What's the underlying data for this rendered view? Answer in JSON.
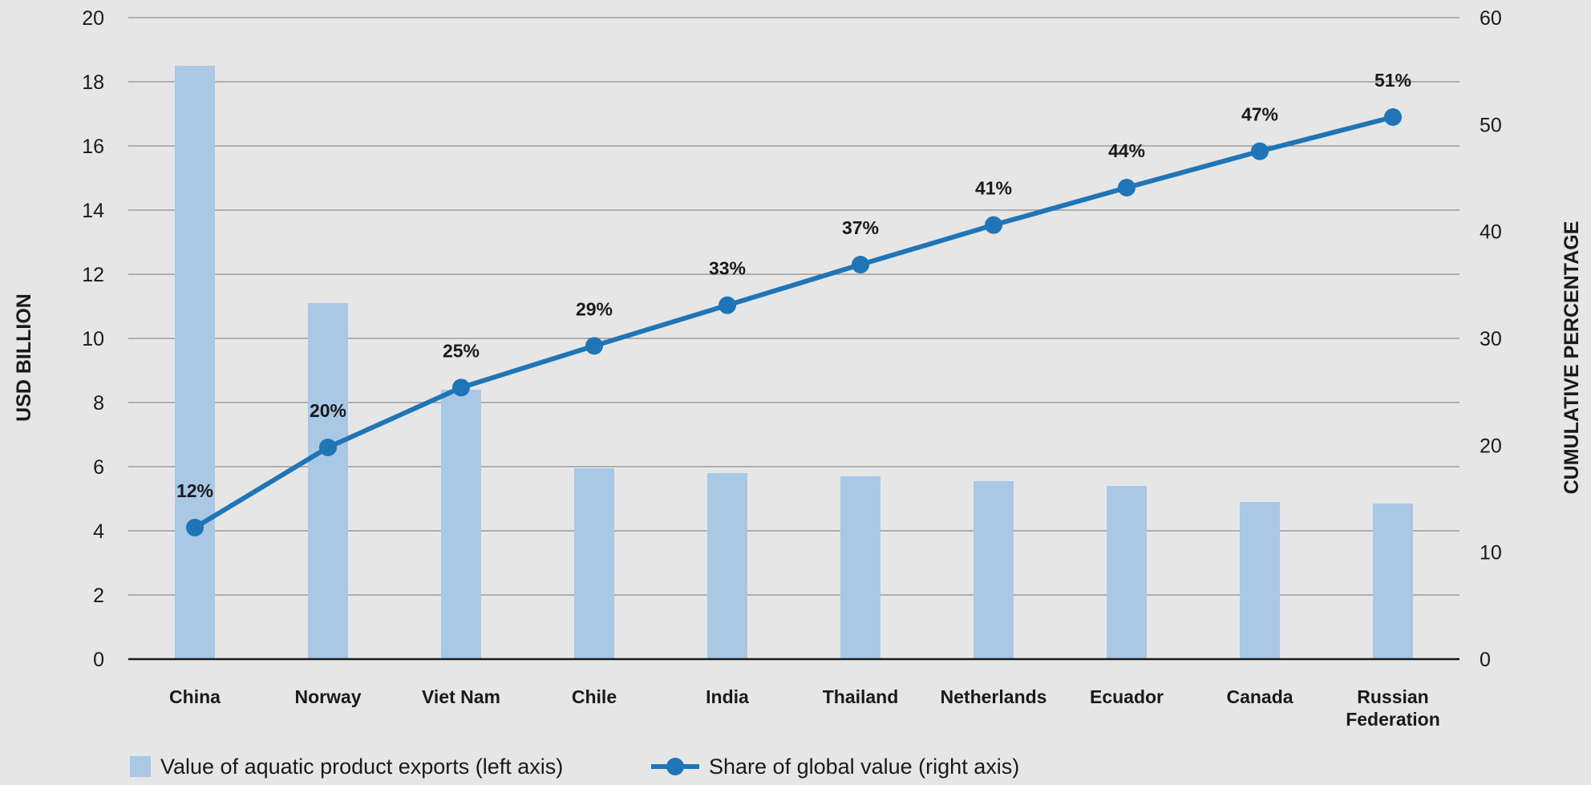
{
  "chart_data": {
    "type": "bar",
    "categories": [
      "China",
      "Norway",
      "Viet Nam",
      "Chile",
      "India",
      "Thailand",
      "Netherlands",
      "Ecuador",
      "Canada",
      "Russian\nFederation"
    ],
    "series": [
      {
        "name": "Value of aquatic product exports (left axis)",
        "type": "bar",
        "axis": "left",
        "color": "#a9c8e5",
        "values": [
          18.5,
          11.1,
          8.4,
          5.95,
          5.8,
          5.7,
          5.55,
          5.4,
          4.9,
          4.85
        ]
      },
      {
        "name": "Share of global value (right axis)",
        "type": "line",
        "axis": "right",
        "color": "#1f75b6",
        "values": [
          12.3,
          19.8,
          25.4,
          29.3,
          33.1,
          36.9,
          40.6,
          44.1,
          47.5,
          50.7
        ],
        "labels": [
          "12%",
          "20%",
          "25%",
          "29%",
          "33%",
          "37%",
          "41%",
          "44%",
          "47%",
          "51%"
        ]
      }
    ],
    "ylabel": "USD BILLION",
    "y2label": "CUMULATIVE PERCENTAGE",
    "ylim": [
      0,
      20
    ],
    "y2lim": [
      0,
      60
    ],
    "yticks": [
      "0",
      "2",
      "4",
      "6",
      "8",
      "10",
      "12",
      "14",
      "16",
      "18",
      "20"
    ],
    "y2ticks": [
      "0",
      "10",
      "20",
      "30",
      "40",
      "50",
      "60"
    ],
    "grid": true,
    "legend_position": "bottom-left"
  }
}
